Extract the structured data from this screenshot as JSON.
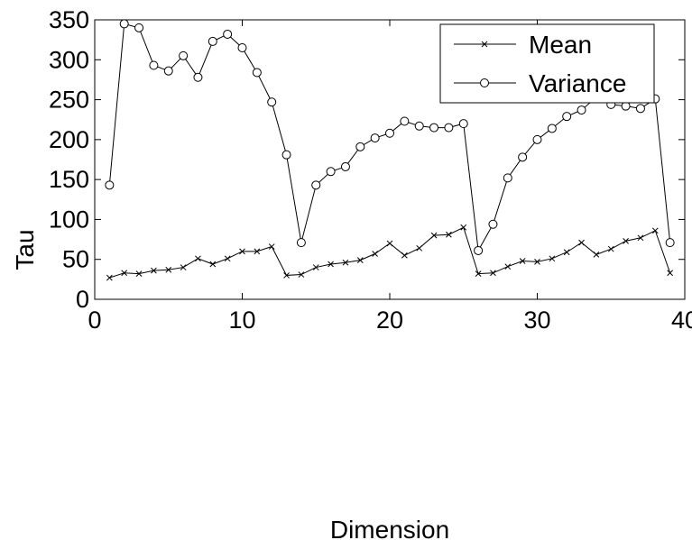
{
  "chart_data": {
    "type": "line",
    "xlabel": "Dimension",
    "ylabel": "Tau",
    "xlim": [
      0,
      40
    ],
    "ylim": [
      0,
      350
    ],
    "xticks": [
      0,
      10,
      20,
      30,
      40
    ],
    "yticks": [
      0,
      50,
      100,
      150,
      200,
      250,
      300,
      350
    ],
    "grid": false,
    "legend_position": "top-right",
    "x": [
      1,
      2,
      3,
      4,
      5,
      6,
      7,
      8,
      9,
      10,
      11,
      12,
      13,
      14,
      15,
      16,
      17,
      18,
      19,
      20,
      21,
      22,
      23,
      24,
      25,
      26,
      27,
      28,
      29,
      30,
      31,
      32,
      33,
      34,
      35,
      36,
      37,
      38,
      39
    ],
    "series": [
      {
        "name": "Mean",
        "marker": "x",
        "color": "#000000",
        "values": [
          27,
          33,
          32,
          36,
          37,
          40,
          51,
          44,
          51,
          60,
          60,
          66,
          30,
          31,
          40,
          44,
          46,
          49,
          57,
          70,
          55,
          64,
          80,
          81,
          90,
          32,
          33,
          41,
          48,
          47,
          51,
          59,
          71,
          56,
          63,
          73,
          77,
          86,
          33
        ]
      },
      {
        "name": "Variance",
        "marker": "o",
        "color": "#000000",
        "values": [
          143,
          345,
          340,
          293,
          286,
          305,
          278,
          323,
          332,
          315,
          284,
          247,
          181,
          71,
          143,
          160,
          166,
          191,
          202,
          208,
          223,
          217,
          215,
          215,
          220,
          61,
          94,
          152,
          178,
          200,
          214,
          229,
          237,
          253,
          244,
          242,
          239,
          251,
          71
        ]
      }
    ]
  }
}
